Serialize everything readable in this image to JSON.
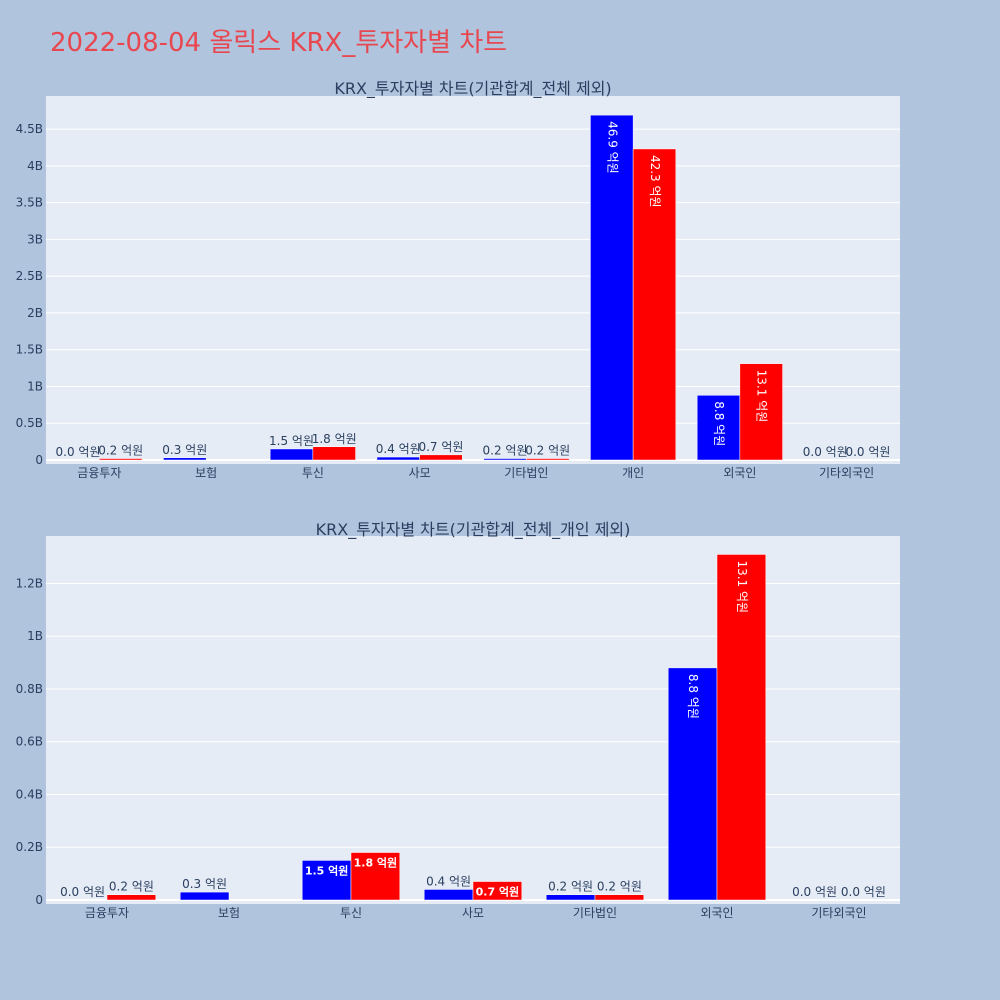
{
  "page_title": "2022-08-04 올릭스 KRX_투자자별 차트",
  "colors": {
    "background": "#b0c4de",
    "plot_bg": "#e5ecf6",
    "title": "#e8474f",
    "buy": "#0000ff",
    "sell": "#ff0000"
  },
  "chart_data": [
    {
      "type": "bar",
      "title": "KRX_투자자별 차트(기관합계_전체 제외)",
      "categories": [
        "금융투자",
        "보험",
        "투신",
        "사모",
        "기타법인",
        "개인",
        "외국인",
        "기타외국인"
      ],
      "series": [
        {
          "color": "#0000ff",
          "values": [
            0.0,
            0.03,
            0.15,
            0.04,
            0.02,
            4.69,
            0.88,
            0.0
          ],
          "labels": [
            "0.0 억원",
            "0.3 억원",
            "1.5 억원",
            "0.4 억원",
            "0.2 억원",
            "46.9 억원",
            "8.8 억원",
            "0.0 억원"
          ]
        },
        {
          "color": "#ff0000",
          "values": [
            0.02,
            0.0,
            0.18,
            0.07,
            0.02,
            4.23,
            1.31,
            0.0
          ],
          "labels": [
            "0.2 억원",
            "",
            "1.8 억원",
            "0.7 억원",
            "0.2 억원",
            "42.3 억원",
            "13.1 억원",
            "0.0 억원"
          ]
        }
      ],
      "yticks": [
        "0",
        "0.5B",
        "1B",
        "1.5B",
        "2B",
        "2.5B",
        "3B",
        "3.5B",
        "4B",
        "4.5B"
      ],
      "ylim": [
        0,
        4.95
      ]
    },
    {
      "type": "bar",
      "title": "KRX_투자자별 차트(기관합계_전체_개인 제외)",
      "categories": [
        "금융투자",
        "보험",
        "투신",
        "사모",
        "기타법인",
        "외국인",
        "기타외국인"
      ],
      "series": [
        {
          "color": "#0000ff",
          "values": [
            0.0,
            0.03,
            0.15,
            0.04,
            0.02,
            0.88,
            0.0
          ],
          "labels": [
            "0.0 억원",
            "0.3 억원",
            "1.5 억원",
            "0.4 억원",
            "0.2 억원",
            "8.8 억원",
            "0.0 억원"
          ]
        },
        {
          "color": "#ff0000",
          "values": [
            0.02,
            0.0,
            0.18,
            0.07,
            0.02,
            1.31,
            0.0
          ],
          "labels": [
            "0.2 억원",
            "",
            "1.8 억원",
            "0.7 억원",
            "0.2 억원",
            "13.1 억원",
            "0.0 억원"
          ]
        }
      ],
      "yticks": [
        "0",
        "0.2B",
        "0.4B",
        "0.6B",
        "0.8B",
        "1B",
        "1.2B"
      ],
      "ylim": [
        0,
        1.38
      ]
    }
  ]
}
